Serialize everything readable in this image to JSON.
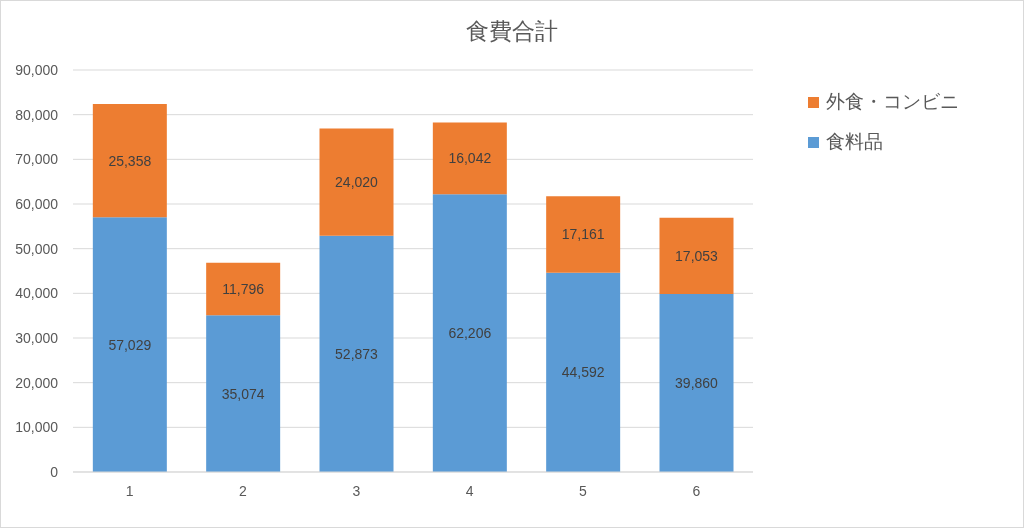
{
  "chart_data": {
    "type": "bar",
    "title": "食費合計",
    "categories": [
      "1",
      "2",
      "3",
      "4",
      "5",
      "6"
    ],
    "series": [
      {
        "name": "食料品",
        "color": "#5b9bd5",
        "values": [
          57029,
          35074,
          52873,
          62206,
          44592,
          39860
        ],
        "value_labels": [
          "57,029",
          "35,074",
          "52,873",
          "62,206",
          "44,592",
          "39,860"
        ]
      },
      {
        "name": "外食・コンビニ",
        "color": "#ed7d31",
        "values": [
          25358,
          11796,
          24020,
          16042,
          17161,
          17053
        ],
        "value_labels": [
          "25,358",
          "11,796",
          "24,020",
          "16,042",
          "17,161",
          "17,053"
        ]
      }
    ],
    "stacked": true,
    "ylim": [
      0,
      90000
    ],
    "yticks": [
      0,
      {
        "value": 10000,
        "label": "10,000"
      },
      {
        "value": 20000,
        "label": "20,000"
      },
      {
        "value": 30000,
        "label": "30,000"
      },
      {
        "value": 40000,
        "label": "40,000"
      },
      {
        "value": 50000,
        "label": "50,000"
      },
      {
        "value": 60000,
        "label": "60,000"
      },
      {
        "value": 70000,
        "label": "70,000"
      },
      {
        "value": 80000,
        "label": "80,000"
      },
      {
        "value": 90000,
        "label": "90,000"
      }
    ],
    "grid": "y",
    "legend": "top right"
  }
}
